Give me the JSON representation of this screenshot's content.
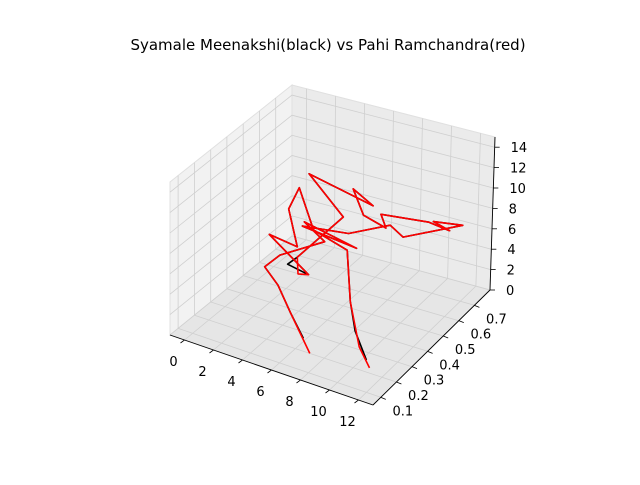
{
  "chart_data": {
    "type": "line3d",
    "title": "Syamale Meenakshi(black) vs Pahi Ramchandra(red)",
    "xlabel": "",
    "ylabel": "",
    "zlabel": "",
    "grid": true,
    "axes": {
      "x": {
        "ticks": [
          0,
          2,
          4,
          6,
          8,
          10,
          12
        ],
        "tick_labels": [
          "0",
          "2",
          "4",
          "6",
          "8",
          "10",
          "12"
        ],
        "range": [
          -1,
          13
        ]
      },
      "y": {
        "ticks": [
          0.1,
          0.2,
          0.3,
          0.4,
          0.5,
          0.6,
          0.7
        ],
        "tick_labels": [
          "0.1",
          "0.2",
          "0.3",
          "0.4",
          "0.5",
          "0.6",
          "0.7"
        ],
        "range": [
          0.05,
          0.8
        ]
      },
      "z": {
        "ticks": [
          0,
          2,
          4,
          6,
          8,
          10,
          12,
          14
        ],
        "tick_labels": [
          "0",
          "2",
          "4",
          "6",
          "8",
          "10",
          "12",
          "14"
        ],
        "range": [
          0,
          15
        ]
      }
    },
    "series": [
      {
        "name": "Syamale Meenakshi",
        "color": "#000000",
        "points": [
          [
            12.0,
            0.1,
            3.0
          ],
          [
            11.0,
            0.12,
            5.0
          ],
          [
            10.0,
            0.18,
            6.5
          ],
          [
            9.0,
            0.25,
            10.0
          ],
          [
            7.0,
            0.22,
            11.5
          ],
          [
            4.0,
            0.4,
            12.0
          ],
          [
            3.5,
            0.38,
            10.0
          ],
          [
            5.0,
            0.3,
            8.0
          ],
          [
            2.5,
            0.35,
            7.5
          ],
          [
            6.0,
            0.28,
            6.0
          ],
          [
            4.0,
            0.33,
            5.5
          ],
          [
            5.0,
            0.3,
            7.0
          ],
          [
            6.5,
            0.45,
            9.5
          ],
          [
            3.0,
            0.55,
            11.0
          ],
          [
            8.0,
            0.5,
            10.5
          ],
          [
            7.5,
            0.42,
            13.0
          ],
          [
            9.0,
            0.35,
            12.0
          ],
          [
            10.0,
            0.4,
            10.5
          ],
          [
            8.0,
            0.55,
            9.0
          ],
          [
            11.0,
            0.58,
            9.0
          ],
          [
            12.0,
            0.62,
            8.0
          ],
          [
            10.0,
            0.7,
            7.0
          ],
          [
            11.5,
            0.75,
            6.5
          ],
          [
            9.0,
            0.6,
            6.5
          ],
          [
            7.0,
            0.7,
            5.5
          ],
          [
            5.0,
            0.62,
            5.0
          ],
          [
            2.0,
            0.6,
            4.8
          ],
          [
            6.0,
            0.58,
            4.5
          ],
          [
            1.0,
            0.7,
            3.5
          ],
          [
            3.0,
            0.65,
            3.0
          ],
          [
            1.0,
            0.55,
            2.2
          ],
          [
            0.5,
            0.5,
            1.5
          ],
          [
            2.0,
            0.45,
            1.0
          ],
          [
            4.0,
            0.35,
            0.5
          ],
          [
            6.0,
            0.25,
            0.3
          ]
        ]
      },
      {
        "name": "Pahi Ramchandra",
        "color": "#ff0000",
        "points": [
          [
            12.0,
            0.12,
            2.0
          ],
          [
            11.5,
            0.1,
            4.0
          ],
          [
            10.0,
            0.18,
            6.5
          ],
          [
            9.0,
            0.25,
            10.0
          ],
          [
            7.0,
            0.22,
            11.5
          ],
          [
            4.0,
            0.4,
            12.0
          ],
          [
            3.5,
            0.38,
            10.0
          ],
          [
            5.0,
            0.3,
            8.0
          ],
          [
            2.5,
            0.35,
            7.5
          ],
          [
            6.0,
            0.28,
            6.0
          ],
          [
            4.5,
            0.35,
            4.5
          ],
          [
            5.0,
            0.3,
            7.0
          ],
          [
            6.5,
            0.45,
            9.5
          ],
          [
            3.0,
            0.55,
            11.0
          ],
          [
            8.0,
            0.5,
            10.5
          ],
          [
            7.5,
            0.42,
            13.0
          ],
          [
            9.0,
            0.35,
            12.0
          ],
          [
            10.0,
            0.4,
            10.5
          ],
          [
            8.0,
            0.55,
            9.0
          ],
          [
            11.0,
            0.58,
            9.0
          ],
          [
            12.0,
            0.62,
            8.0
          ],
          [
            10.0,
            0.7,
            7.0
          ],
          [
            11.5,
            0.75,
            6.5
          ],
          [
            9.0,
            0.6,
            6.5
          ],
          [
            7.0,
            0.7,
            5.5
          ],
          [
            5.0,
            0.62,
            5.0
          ],
          [
            2.0,
            0.6,
            4.8
          ],
          [
            6.0,
            0.58,
            4.5
          ],
          [
            1.0,
            0.7,
            3.5
          ],
          [
            3.0,
            0.65,
            3.0
          ],
          [
            1.0,
            0.55,
            2.2
          ],
          [
            0.5,
            0.5,
            1.5
          ],
          [
            2.0,
            0.45,
            1.0
          ],
          [
            4.0,
            0.35,
            0.5
          ],
          [
            7.0,
            0.2,
            0.0
          ]
        ]
      }
    ]
  }
}
